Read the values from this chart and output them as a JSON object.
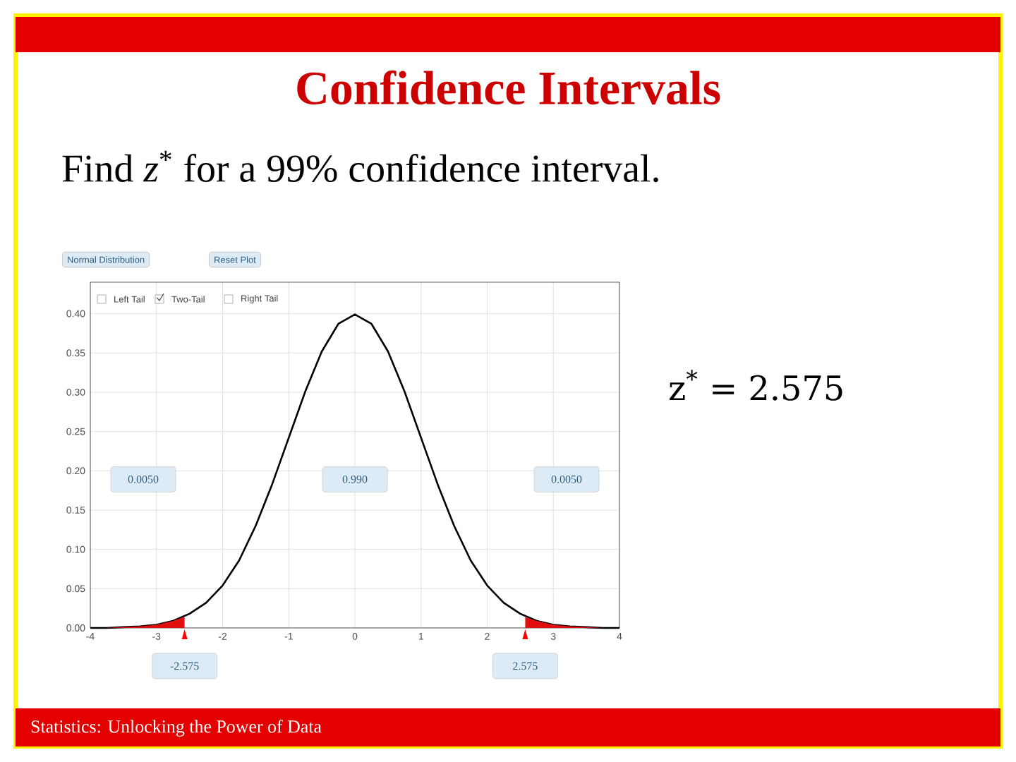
{
  "chart_data": {
    "type": "line",
    "title": "Confidence Intervals",
    "subtitle": "Find *z*$^{*}$ for a 99% confidence interval.",
    "x": [
      -4,
      -3.75,
      -3.5,
      -3.25,
      -3,
      -2.75,
      -2.5,
      -2.25,
      -2,
      -1.75,
      -1.5,
      -1.25,
      -1,
      -0.75,
      -0.5,
      -0.25,
      0,
      0.25,
      0.5,
      0.75,
      1,
      1.25,
      1.5,
      1.75,
      2,
      2.25,
      2.5,
      2.75,
      3,
      3.25,
      3.5,
      3.75,
      4
    ],
    "series": [
      {
        "color": "#000000",
        "values": [
          0.0,
          0.0,
          0.001,
          0.002,
          0.004,
          0.009,
          0.018,
          0.032,
          0.054,
          0.086,
          0.13,
          0.183,
          0.242,
          0.301,
          0.352,
          0.387,
          0.399,
          0.387,
          0.352,
          0.301,
          0.242,
          0.183,
          0.13,
          0.086,
          0.054,
          0.032,
          0.018,
          0.009,
          0.004,
          0.002,
          0.001,
          0.0,
          0.0
        ]
      },
      {
        "type": "area",
        "color": "#e01010",
        "x": [
          -4,
          -3.75,
          -3.5,
          -3.25,
          -3,
          -2.75,
          -2.575
        ],
        "values": [
          0.0,
          0.0,
          0.001,
          0.002,
          0.004,
          0.009,
          0.014
        ]
      },
      {
        "type": "area",
        "color": "#e01010",
        "x": [
          2.575,
          2.75,
          3,
          3.25,
          3.5,
          3.75,
          4
        ],
        "values": [
          0.014,
          0.009,
          0.004,
          0.002,
          0.001,
          0.0,
          0.0
        ]
      }
    ],
    "xlim": [
      -4,
      4
    ],
    "ylim": [
      0,
      0.44
    ],
    "xticks": [
      -4,
      -3,
      -2,
      -1,
      0,
      1,
      2,
      3,
      4
    ],
    "yticks": [
      {
        "value": 0,
        "label": "0.00"
      },
      {
        "value": 0.05,
        "label": "0.05"
      },
      {
        "value": 0.1,
        "label": "0.10"
      },
      {
        "value": 0.15,
        "label": "0.15"
      },
      {
        "value": 0.2,
        "label": "0.20"
      },
      {
        "value": 0.25,
        "label": "0.25"
      },
      {
        "value": 0.3,
        "label": "0.30"
      },
      {
        "value": 0.35,
        "label": "0.35"
      },
      {
        "value": 0.4,
        "label": "0.40"
      }
    ],
    "grid": true,
    "annotations": [
      "0.0050",
      "0.990",
      "0.0050",
      "-2.575",
      "2.575",
      "Normal Distribution",
      "Reset Plot",
      "Left Tail",
      "Two-Tail",
      "Right Tail",
      "z$^{*}$ = 2.575",
      "Statistics: Unlocking the Power of Data"
    ]
  }
}
